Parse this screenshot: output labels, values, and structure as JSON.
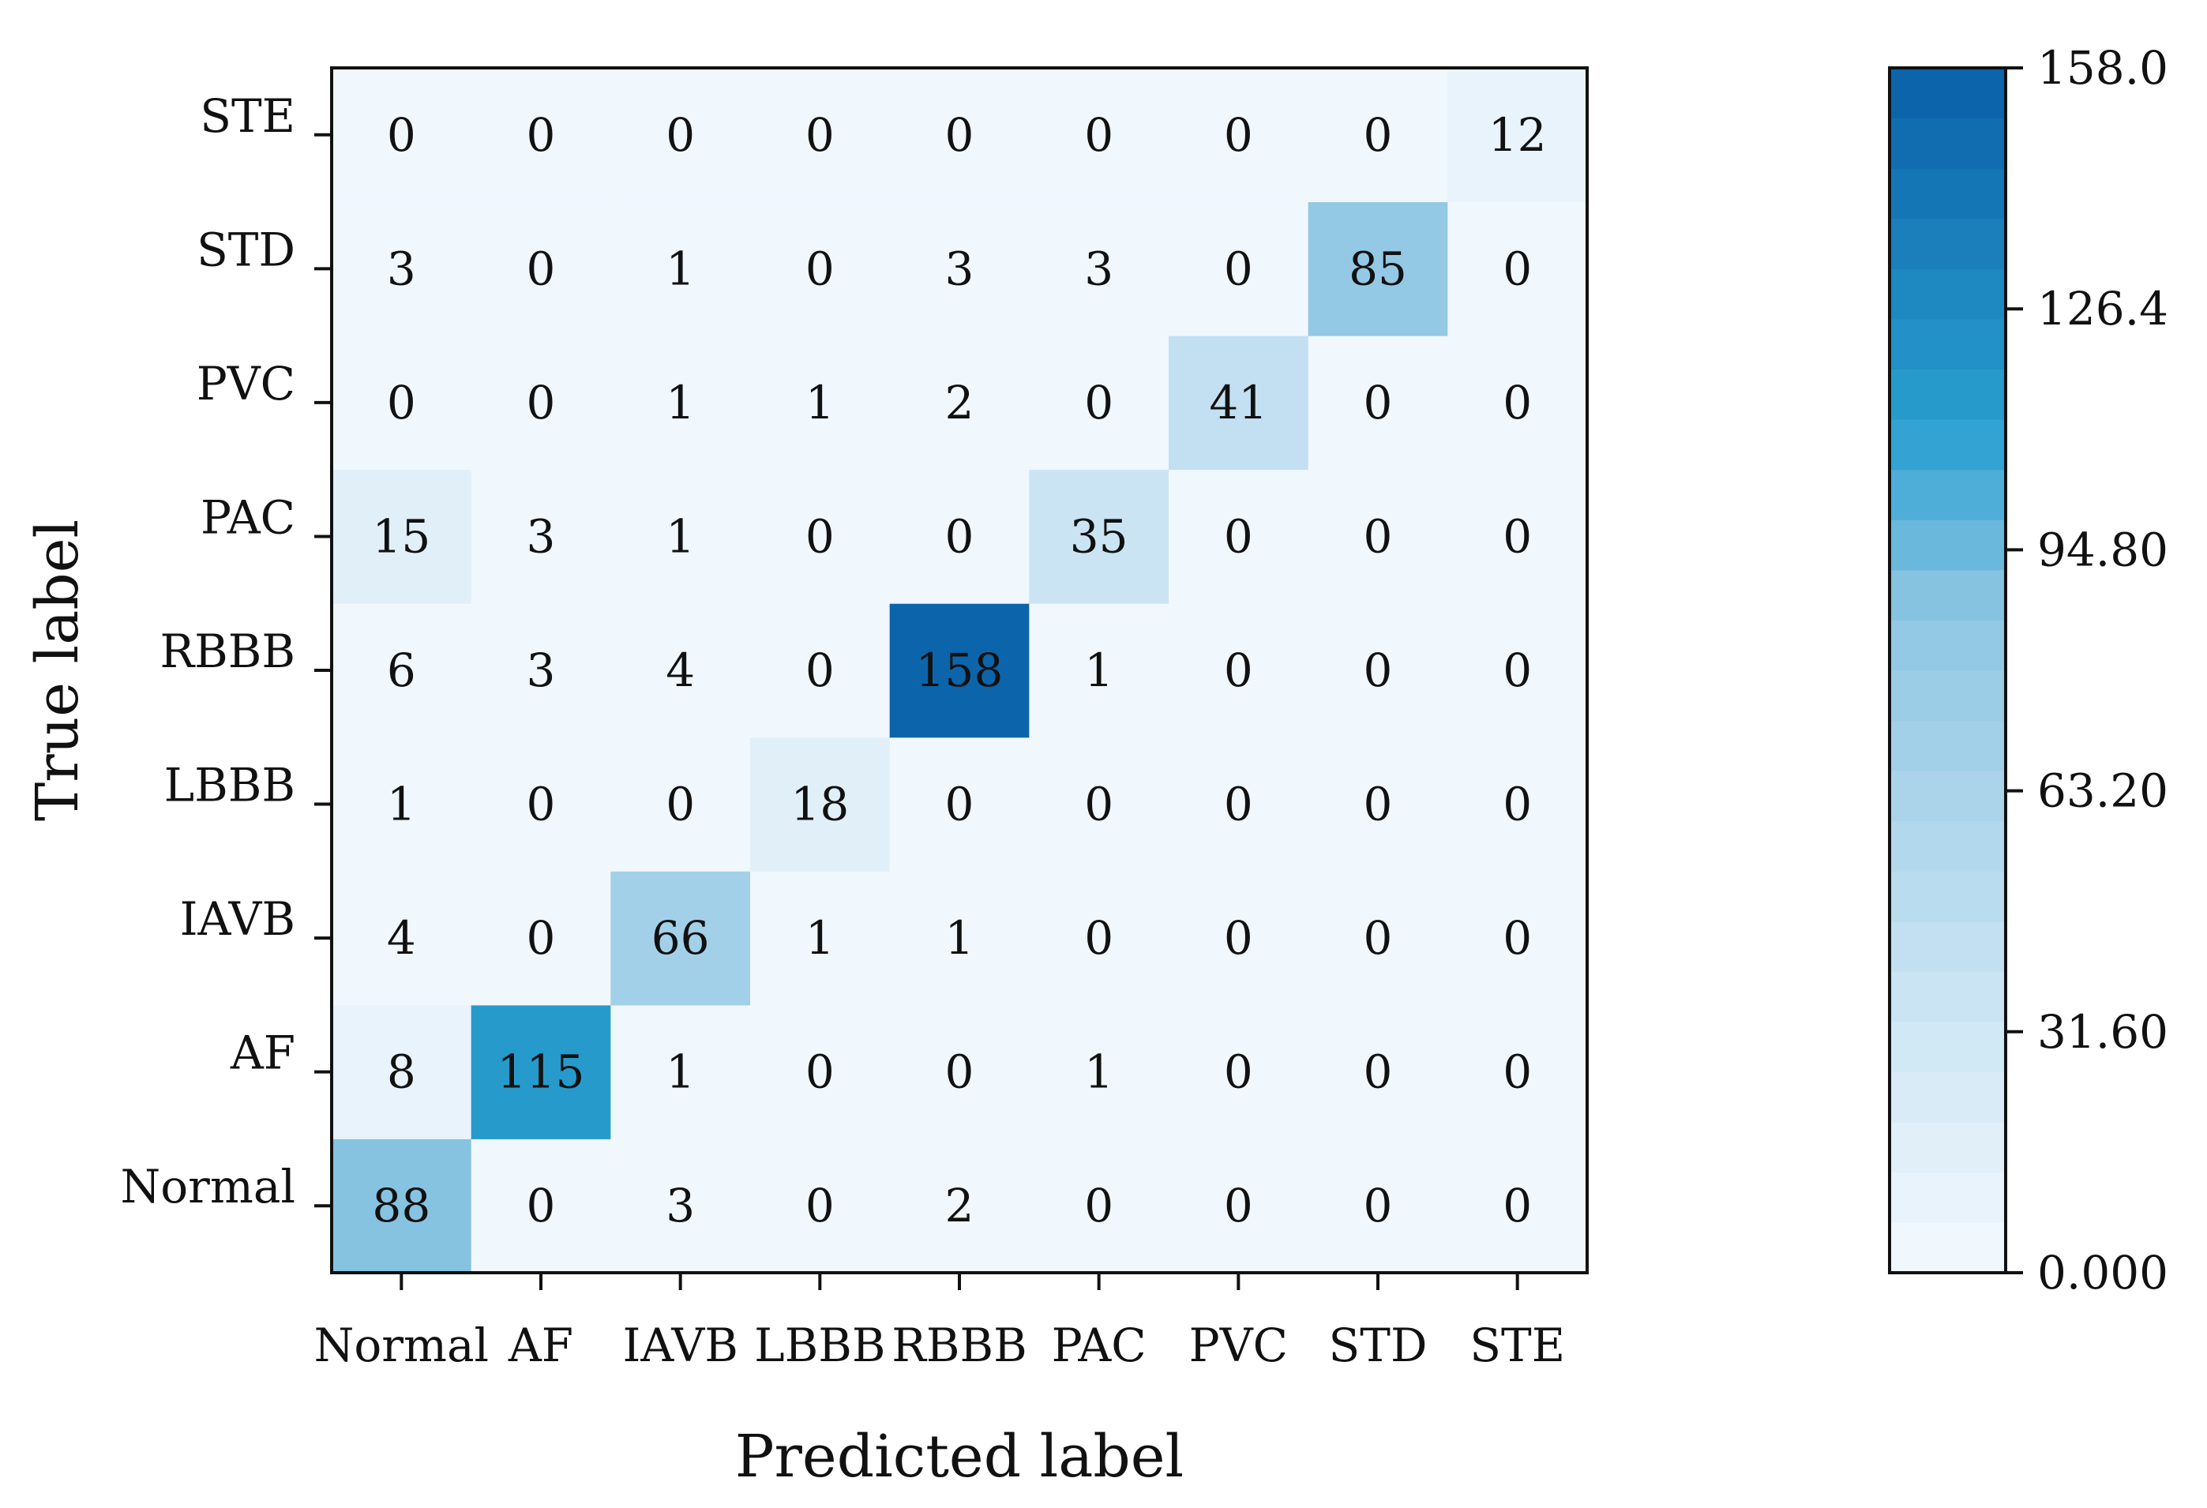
{
  "chart_data": {
    "type": "heatmap",
    "xlabel": "Predicted label",
    "ylabel": "True label",
    "x_categories": [
      "Normal",
      "AF",
      "IAVB",
      "LBBB",
      "RBBB",
      "PAC",
      "PVC",
      "STD",
      "STE"
    ],
    "y_categories": [
      "Normal",
      "AF",
      "IAVB",
      "LBBB",
      "RBBB",
      "PAC",
      "PVC",
      "STD",
      "STE"
    ],
    "y_axis_order": "bottom-to-top",
    "matrix": [
      [
        88,
        0,
        3,
        0,
        2,
        0,
        0,
        0,
        0
      ],
      [
        8,
        115,
        1,
        0,
        0,
        1,
        0,
        0,
        0
      ],
      [
        4,
        0,
        66,
        1,
        1,
        0,
        0,
        0,
        0
      ],
      [
        1,
        0,
        0,
        18,
        0,
        0,
        0,
        0,
        0
      ],
      [
        6,
        3,
        4,
        0,
        158,
        1,
        0,
        0,
        0
      ],
      [
        15,
        3,
        1,
        0,
        0,
        35,
        0,
        0,
        0
      ],
      [
        0,
        0,
        1,
        1,
        2,
        0,
        41,
        0,
        0
      ],
      [
        3,
        0,
        1,
        0,
        3,
        3,
        0,
        85,
        0
      ],
      [
        0,
        0,
        0,
        0,
        0,
        0,
        0,
        0,
        12
      ]
    ],
    "colorbar": {
      "range": [
        0,
        158
      ],
      "tick_values": [
        0,
        31.6,
        63.2,
        94.8,
        126.4,
        158
      ],
      "tick_labels": [
        "0.000",
        "31.60",
        "63.20",
        "94.80",
        "126.4",
        "158.0"
      ],
      "levels": 24
    },
    "colors": {
      "low": "#f4f9fe",
      "high": "#0a5fa8",
      "mid": "#2aa0d0",
      "text_dark": "#111111",
      "text_light": "#ffffff"
    },
    "grid": false
  }
}
